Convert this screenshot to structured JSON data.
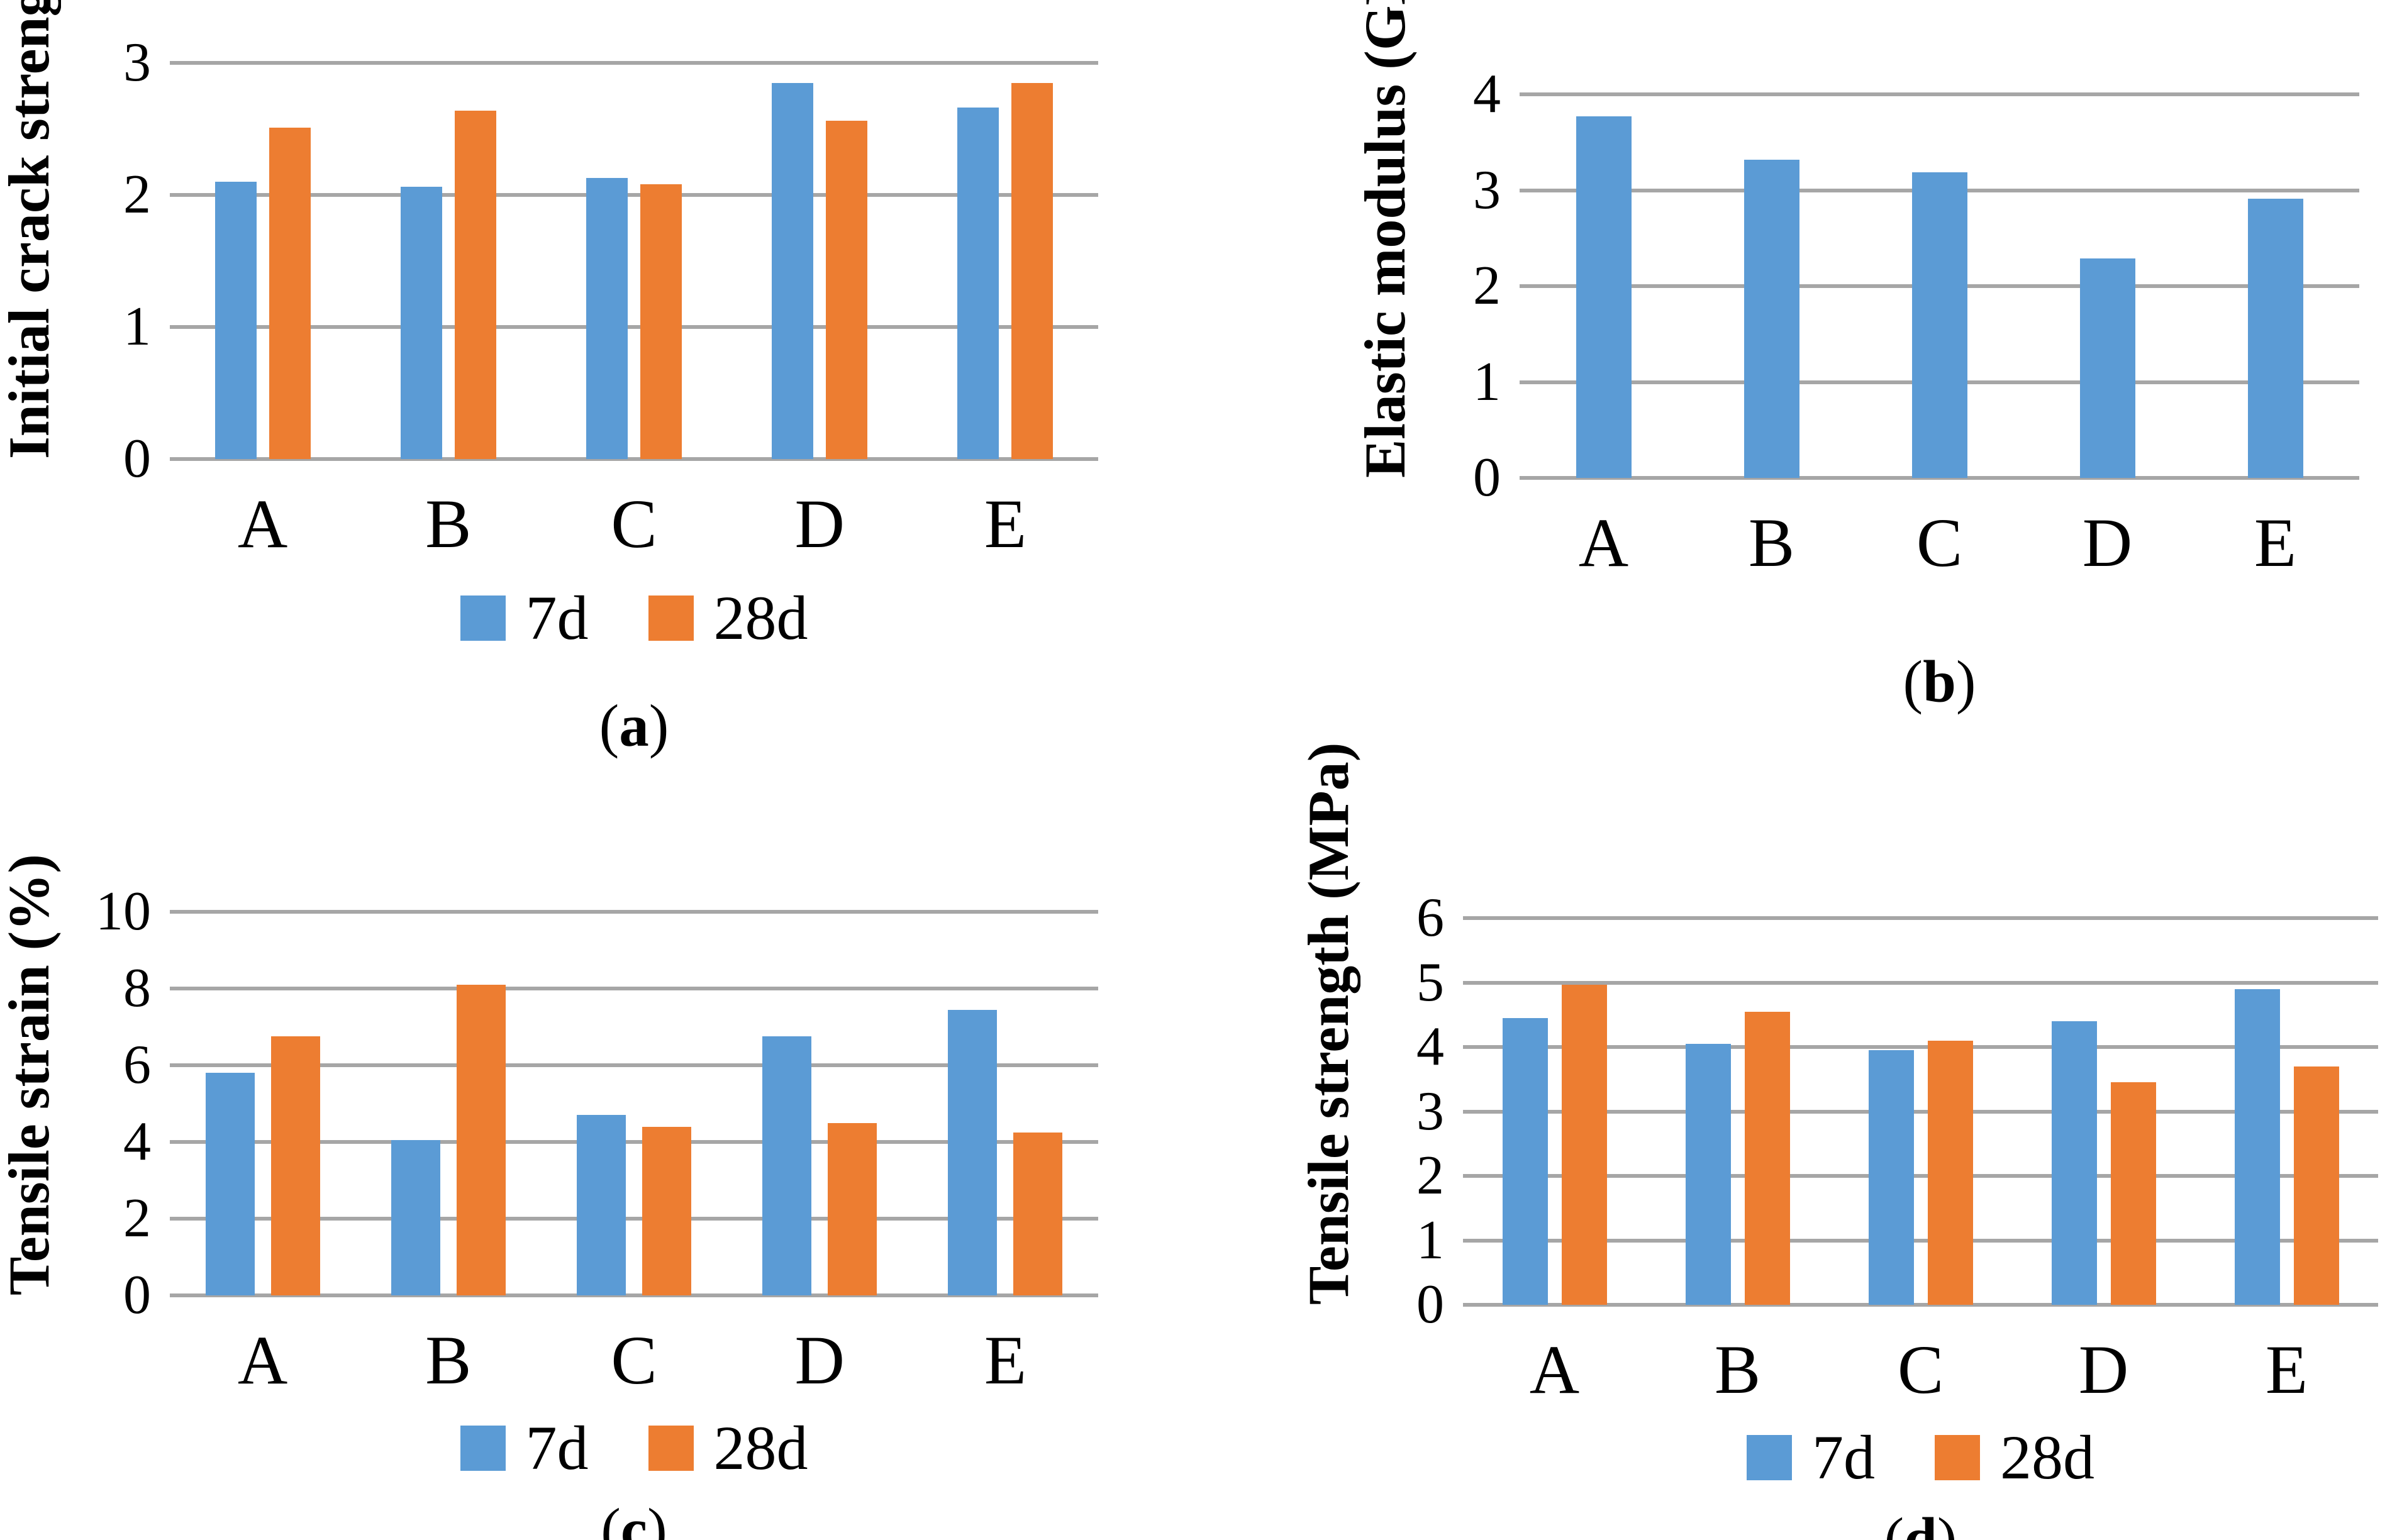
{
  "colors": {
    "series_7d": "#5B9BD5",
    "series_28d": "#ED7D31",
    "gridline": "#A6A6A6",
    "text": "#000000",
    "background": "#FFFFFF"
  },
  "chart_data": [
    {
      "panel": "a",
      "type": "bar",
      "title": "",
      "ylabel": "Initial crack strength (MPa)",
      "xlabel": "",
      "categories": [
        "A",
        "B",
        "C",
        "D",
        "E"
      ],
      "ylim": [
        0,
        3
      ],
      "yticks": [
        0,
        1,
        2,
        3
      ],
      "grid": true,
      "legend_position": "bottom",
      "legend": [
        "7d",
        "28d"
      ],
      "series": [
        {
          "name": "7d",
          "color": "#5B9BD5",
          "values": [
            2.1,
            2.06,
            2.13,
            2.85,
            2.66
          ]
        },
        {
          "name": "28d",
          "color": "#ED7D31",
          "values": [
            2.51,
            2.64,
            2.08,
            2.56,
            2.85
          ]
        }
      ],
      "caption_open": "(",
      "caption_letter": "a",
      "caption_close": ")"
    },
    {
      "panel": "b",
      "type": "bar",
      "title": "",
      "ylabel": "Elastic modulus (GPa)",
      "xlabel": "",
      "categories": [
        "A",
        "B",
        "C",
        "D",
        "E"
      ],
      "ylim": [
        0,
        4
      ],
      "yticks": [
        0,
        1,
        2,
        3,
        4
      ],
      "grid": true,
      "legend_position": "none",
      "legend": [],
      "series": [
        {
          "name": "",
          "color": "#5B9BD5",
          "values": [
            3.77,
            3.32,
            3.19,
            2.29,
            2.91
          ]
        }
      ],
      "caption_open": "(",
      "caption_letter": "b",
      "caption_close": ")"
    },
    {
      "panel": "c",
      "type": "bar",
      "title": "",
      "ylabel": "Tensile strain (%)",
      "xlabel": "",
      "categories": [
        "A",
        "B",
        "C",
        "D",
        "E"
      ],
      "ylim": [
        0,
        10
      ],
      "yticks": [
        0,
        2,
        4,
        6,
        8,
        10
      ],
      "grid": true,
      "legend_position": "bottom",
      "legend": [
        "7d",
        "28d"
      ],
      "series": [
        {
          "name": "7d",
          "color": "#5B9BD5",
          "values": [
            5.8,
            4.05,
            4.7,
            6.75,
            7.45
          ]
        },
        {
          "name": "28d",
          "color": "#ED7D31",
          "values": [
            6.75,
            8.1,
            4.4,
            4.5,
            4.25
          ]
        }
      ],
      "caption_open": "(",
      "caption_letter": "c",
      "caption_close": ")"
    },
    {
      "panel": "d",
      "type": "bar",
      "title": "",
      "ylabel": "Tensile strength (MPa)",
      "xlabel": "",
      "categories": [
        "A",
        "B",
        "C",
        "D",
        "E"
      ],
      "ylim": [
        0,
        6
      ],
      "yticks": [
        0,
        1,
        2,
        3,
        4,
        5,
        6
      ],
      "grid": true,
      "legend_position": "bottom",
      "legend": [
        "7d",
        "28d"
      ],
      "series": [
        {
          "name": "7d",
          "color": "#5B9BD5",
          "values": [
            4.45,
            4.05,
            3.95,
            4.4,
            4.9
          ]
        },
        {
          "name": "28d",
          "color": "#ED7D31",
          "values": [
            4.97,
            4.55,
            4.1,
            3.45,
            3.7
          ]
        }
      ],
      "caption_open": "(",
      "caption_letter": "d",
      "caption_close": ")"
    }
  ]
}
